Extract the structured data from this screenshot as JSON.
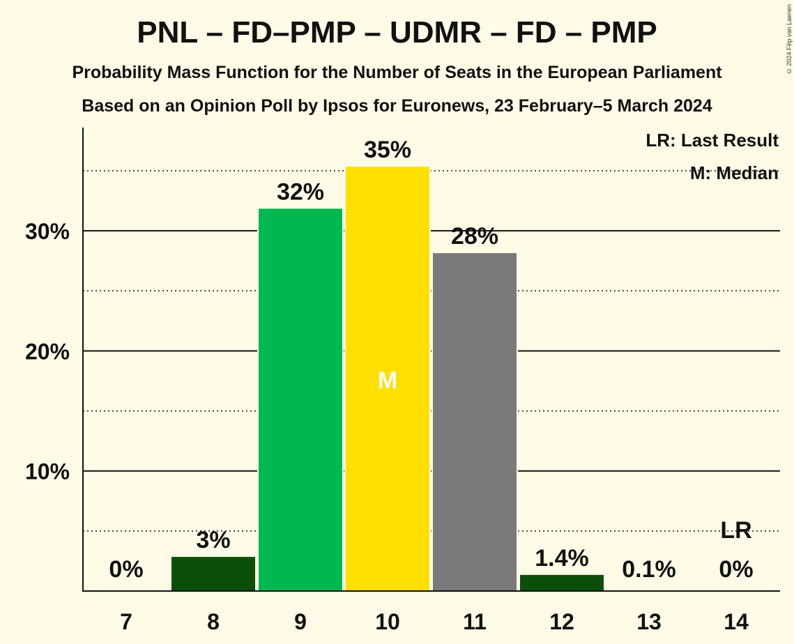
{
  "chart_data": {
    "type": "bar",
    "title": "PNL – FD–PMP – UDMR – FD – PMP",
    "subtitle": "Probability Mass Function for the Number of Seats in the European Parliament",
    "subtitle2": "Based on an Opinion Poll by Ipsos for Euronews, 23 February–5 March 2024",
    "copyright": "© 2024 Filip van Laenen",
    "categories": [
      "7",
      "8",
      "9",
      "10",
      "11",
      "12",
      "13",
      "14"
    ],
    "values": [
      0,
      2.9,
      31.9,
      35.4,
      28.2,
      1.4,
      0.1,
      0
    ],
    "value_labels": [
      "0%",
      "3%",
      "32%",
      "35%",
      "28%",
      "1.4%",
      "0.1%",
      "0%"
    ],
    "colors": [
      "#0b4f0b",
      "#0b4f0b",
      "#00b84f",
      "#ffe000",
      "#7a7a7a",
      "#0b4f0b",
      "#0b4f0b",
      "#0b4f0b"
    ],
    "ylim": [
      0,
      38.6
    ],
    "yticks": [
      10,
      20,
      30
    ],
    "ytick_labels": [
      "10%",
      "20%",
      "30%"
    ],
    "minor_gridlines": [
      5,
      15,
      25,
      35
    ],
    "median_index": 3,
    "median_marker": "M",
    "last_result_index": 7,
    "last_result_marker": "LR",
    "legend": [
      "LR: Last Result",
      "M: Median"
    ],
    "legend_position": "top-right"
  }
}
